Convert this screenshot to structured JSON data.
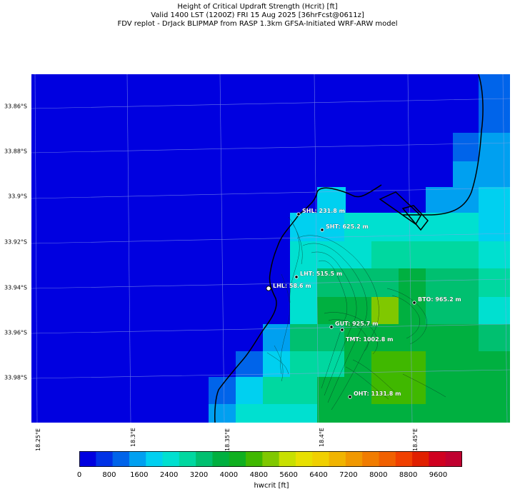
{
  "title": {
    "line1": "Height of Critical Updraft Strength (Hcrit) [ft]",
    "line2": "Valid 1400 LST (1200Z) FRI 15 Aug 2025 [36hrFcst@0611z]",
    "line3": "FDV replot - DrJack BLIPMAP from RASP 1.3km GFSA-Initiated WRF-ARW model"
  },
  "axes": {
    "lat_labels": [
      "33.86°S",
      "33.88°S",
      "33.9°S",
      "33.92°S",
      "33.94°S",
      "33.96°S",
      "33.98°S"
    ],
    "lon_labels": [
      "18.25°E",
      "18.3°E",
      "18.35°E",
      "18.4°E",
      "18.45°E"
    ]
  },
  "stations": [
    {
      "label": "SHL: 231.8 m"
    },
    {
      "label": "SHT: 625.2 m"
    },
    {
      "label": "LHT: 515.5 m"
    },
    {
      "label": "LHL: 58.6 m"
    },
    {
      "label": "BTO: 965.2 m"
    },
    {
      "label": "GUT: 925.7 m"
    },
    {
      "label": "TMT: 1002.8 m"
    },
    {
      "label": "OHT: 1131.8 m"
    }
  ],
  "colorbar": {
    "label": "hwcrit [ft]",
    "ticks": [
      "0",
      "800",
      "1600",
      "2400",
      "3200",
      "4000",
      "4800",
      "5600",
      "6400",
      "7200",
      "8000",
      "8800",
      "9600"
    ],
    "colors": [
      "#0000e0",
      "#0032e6",
      "#0064ea",
      "#00a0f0",
      "#00d0f0",
      "#00e0d0",
      "#00d8a0",
      "#00c070",
      "#00b040",
      "#10b020",
      "#40b800",
      "#80c800",
      "#c8e000",
      "#e8e000",
      "#f0d000",
      "#f0b400",
      "#f09800",
      "#f07c00",
      "#f06000",
      "#f04000",
      "#e02000",
      "#d00020",
      "#c00030"
    ]
  },
  "colors": {
    "background_low": "#0000e0",
    "ocean": "#0000e0"
  }
}
